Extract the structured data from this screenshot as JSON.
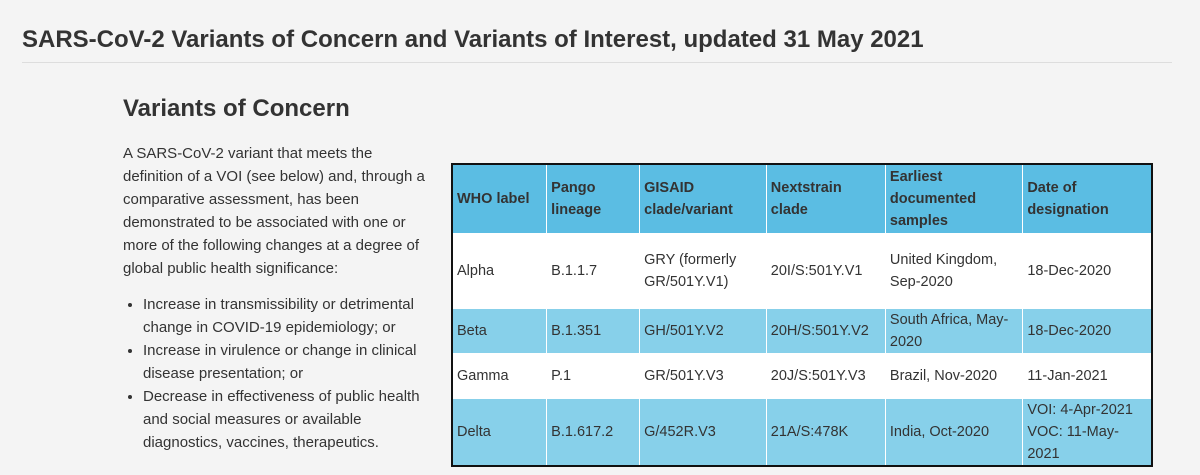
{
  "header": {
    "title": "SARS-CoV-2 Variants of Concern and Variants of Interest, updated 31 May 2021"
  },
  "section": {
    "heading": "Variants of Concern",
    "paragraph": "A SARS-CoV-2 variant that meets the definition of a VOI (see below) and, through a comparative assessment, has been demonstrated to be associated with one or more of the following changes at a degree of global public health significance:",
    "bullets": [
      "Increase in transmissibility or detrimental change in COVID-19 epidemiology; or",
      "Increase in virulence or change in clinical disease presentation; or",
      "Decrease in effectiveness of public health and social measures or available diagnostics, vaccines, therapeutics."
    ]
  },
  "table": {
    "columns": [
      "WHO label",
      "Pango lineage",
      "GISAID clade/variant",
      "Nextstrain clade",
      "Earliest documented samples",
      "Date of designation"
    ],
    "rows": [
      [
        "Alpha",
        "B.1.1.7",
        "GRY (formerly GR/501Y.V1)",
        "20I/S:501Y.V1",
        "United Kingdom, Sep-2020",
        "18-Dec-2020"
      ],
      [
        "Beta",
        "B.1.351",
        "GH/501Y.V2",
        "20H/S:501Y.V2",
        "South Africa, May-2020",
        "18-Dec-2020"
      ],
      [
        "Gamma",
        "P.1",
        "GR/501Y.V3",
        "20J/S:501Y.V3",
        "Brazil, Nov-2020",
        "11-Jan-2021"
      ],
      [
        "Delta",
        "B.1.617.2",
        "G/452R.V3",
        "21A/S:478K",
        "India, Oct-2020",
        [
          "VOI: 4-Apr-2021",
          "VOC: 11-May-2021"
        ]
      ]
    ]
  }
}
